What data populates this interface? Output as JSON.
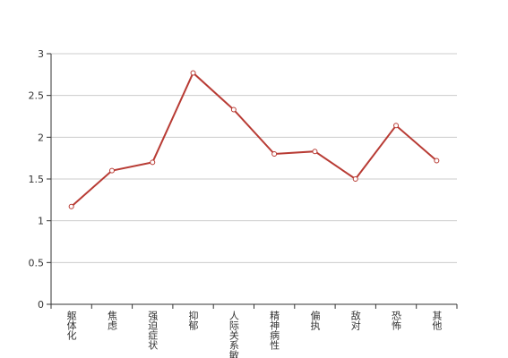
{
  "chart_data": {
    "type": "line",
    "categories": [
      "躯体化",
      "焦虑",
      "强迫症状",
      "抑郁",
      "人际关系敏感",
      "精神病性",
      "偏执",
      "敌对",
      "恐怖",
      "其他"
    ],
    "values": [
      1.17,
      1.6,
      1.7,
      2.77,
      2.33,
      1.8,
      1.83,
      1.5,
      2.14,
      1.72
    ],
    "color": "#b83b34",
    "ylim": [
      0,
      3
    ],
    "yticks": [
      0,
      0.5,
      1,
      1.5,
      2,
      2.5,
      3
    ],
    "grid": true
  }
}
